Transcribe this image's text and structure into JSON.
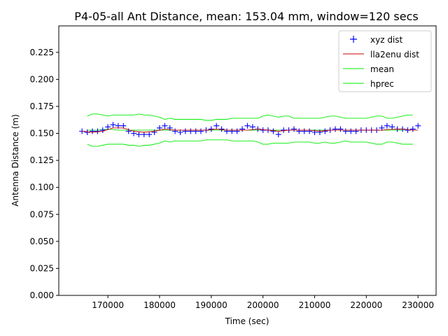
{
  "chart_data": {
    "type": "line",
    "title": "P4-05-all Ant Distance, mean: 153.04 mm, window=120 secs",
    "xlabel": "Time (sec)",
    "ylabel": "Antenna Distance (m)",
    "xlim": [
      160500,
      233500
    ],
    "ylim": [
      0.0,
      0.2495
    ],
    "x_ticks": [
      170000,
      180000,
      190000,
      200000,
      210000,
      220000,
      230000
    ],
    "y_ticks": [
      0.0,
      0.025,
      0.05,
      0.075,
      0.1,
      0.125,
      0.15,
      0.175,
      0.2,
      0.225
    ],
    "grid": false,
    "legend_position": "top-right",
    "series": [
      {
        "name": "xyz dist",
        "style": "marker-plus",
        "color": "#0000ff",
        "x": [
          165000,
          166000,
          167000,
          168000,
          169000,
          170000,
          171000,
          172000,
          173000,
          174000,
          175000,
          176000,
          177000,
          178000,
          179000,
          180000,
          181000,
          182000,
          183000,
          184000,
          185000,
          186000,
          187000,
          188000,
          189000,
          190000,
          191000,
          192000,
          193000,
          194000,
          195000,
          196000,
          197000,
          198000,
          199000,
          200000,
          201000,
          202000,
          203000,
          204000,
          205000,
          206000,
          207000,
          208000,
          209000,
          210000,
          211000,
          212000,
          213000,
          214000,
          215000,
          216000,
          217000,
          218000,
          219000,
          220000,
          221000,
          222000,
          223000,
          224000,
          225000,
          226000,
          227000,
          228000,
          229000,
          230000
        ],
        "y": [
          0.152,
          0.151,
          0.152,
          0.152,
          0.153,
          0.156,
          0.158,
          0.157,
          0.157,
          0.152,
          0.15,
          0.149,
          0.149,
          0.149,
          0.151,
          0.155,
          0.157,
          0.155,
          0.152,
          0.151,
          0.152,
          0.152,
          0.152,
          0.152,
          0.153,
          0.154,
          0.157,
          0.154,
          0.152,
          0.152,
          0.152,
          0.154,
          0.157,
          0.156,
          0.154,
          0.153,
          0.153,
          0.152,
          0.149,
          0.153,
          0.153,
          0.154,
          0.152,
          0.152,
          0.152,
          0.151,
          0.151,
          0.152,
          0.153,
          0.154,
          0.154,
          0.152,
          0.152,
          0.152,
          0.153,
          0.153,
          0.153,
          0.153,
          0.155,
          0.157,
          0.156,
          0.154,
          0.154,
          0.153,
          0.154,
          0.157
        ]
      },
      {
        "name": "lla2enu dist",
        "style": "line",
        "color": "#cc0000",
        "x": [
          165000,
          167000,
          169000,
          171000,
          173000,
          175000,
          177000,
          179000,
          181000,
          183000,
          185000,
          187000,
          189000,
          191000,
          193000,
          195000,
          197000,
          199000,
          201000,
          203000,
          205000,
          207000,
          209000,
          211000,
          213000,
          215000,
          217000,
          219000,
          221000,
          223000,
          225000,
          227000,
          229000,
          230000
        ],
        "y": [
          0.152,
          0.151,
          0.152,
          0.155,
          0.155,
          0.152,
          0.151,
          0.152,
          0.154,
          0.153,
          0.153,
          0.153,
          0.153,
          0.154,
          0.153,
          0.153,
          0.153,
          0.154,
          0.153,
          0.152,
          0.153,
          0.153,
          0.153,
          0.152,
          0.153,
          0.153,
          0.153,
          0.153,
          0.153,
          0.153,
          0.154,
          0.154,
          0.153,
          0.153
        ]
      },
      {
        "name": "mean",
        "style": "line",
        "color": "#00ee00",
        "x": [
          166000,
          168000,
          170000,
          172000,
          174000,
          176000,
          178000,
          180000,
          182000,
          184000,
          186000,
          188000,
          190000,
          192000,
          194000,
          196000,
          198000,
          200000,
          202000,
          204000,
          206000,
          208000,
          210000,
          212000,
          214000,
          216000,
          218000,
          220000,
          222000,
          224000,
          226000,
          228000,
          229000
        ],
        "y": [
          0.153,
          0.153,
          0.154,
          0.153,
          0.153,
          0.153,
          0.153,
          0.153,
          0.153,
          0.153,
          0.153,
          0.153,
          0.153,
          0.153,
          0.153,
          0.153,
          0.153,
          0.153,
          0.153,
          0.153,
          0.153,
          0.153,
          0.153,
          0.153,
          0.153,
          0.153,
          0.153,
          0.153,
          0.153,
          0.153,
          0.153,
          0.153,
          0.153
        ]
      },
      {
        "name": "hprec",
        "style": "band",
        "color": "#00ee00",
        "x": [
          166000,
          167000,
          168000,
          169000,
          170000,
          171000,
          172000,
          173000,
          174000,
          175000,
          176000,
          177000,
          178000,
          179000,
          180000,
          181000,
          182000,
          183000,
          184000,
          185000,
          186000,
          187000,
          188000,
          189000,
          190000,
          191000,
          192000,
          193000,
          194000,
          195000,
          196000,
          197000,
          198000,
          199000,
          200000,
          201000,
          202000,
          203000,
          204000,
          205000,
          206000,
          207000,
          208000,
          209000,
          210000,
          211000,
          212000,
          213000,
          214000,
          215000,
          216000,
          217000,
          218000,
          219000,
          220000,
          221000,
          222000,
          223000,
          224000,
          225000,
          226000,
          227000,
          228000,
          229000
        ],
        "upper": [
          0.166,
          0.168,
          0.168,
          0.167,
          0.166,
          0.167,
          0.167,
          0.167,
          0.167,
          0.167,
          0.168,
          0.167,
          0.167,
          0.166,
          0.165,
          0.163,
          0.164,
          0.163,
          0.163,
          0.163,
          0.163,
          0.163,
          0.163,
          0.162,
          0.162,
          0.163,
          0.163,
          0.163,
          0.164,
          0.164,
          0.164,
          0.164,
          0.164,
          0.164,
          0.166,
          0.167,
          0.166,
          0.165,
          0.166,
          0.166,
          0.164,
          0.164,
          0.164,
          0.164,
          0.164,
          0.164,
          0.165,
          0.166,
          0.166,
          0.165,
          0.164,
          0.164,
          0.164,
          0.164,
          0.164,
          0.165,
          0.166,
          0.166,
          0.164,
          0.164,
          0.165,
          0.166,
          0.167,
          0.167
        ],
        "lower": [
          0.14,
          0.138,
          0.138,
          0.139,
          0.14,
          0.14,
          0.14,
          0.14,
          0.139,
          0.139,
          0.138,
          0.139,
          0.139,
          0.14,
          0.141,
          0.143,
          0.142,
          0.143,
          0.143,
          0.143,
          0.143,
          0.143,
          0.143,
          0.144,
          0.144,
          0.144,
          0.144,
          0.144,
          0.143,
          0.143,
          0.143,
          0.143,
          0.143,
          0.142,
          0.14,
          0.14,
          0.141,
          0.141,
          0.141,
          0.141,
          0.142,
          0.142,
          0.142,
          0.142,
          0.141,
          0.141,
          0.142,
          0.141,
          0.141,
          0.142,
          0.143,
          0.142,
          0.142,
          0.142,
          0.142,
          0.141,
          0.14,
          0.14,
          0.142,
          0.142,
          0.141,
          0.14,
          0.14,
          0.14
        ]
      }
    ]
  }
}
